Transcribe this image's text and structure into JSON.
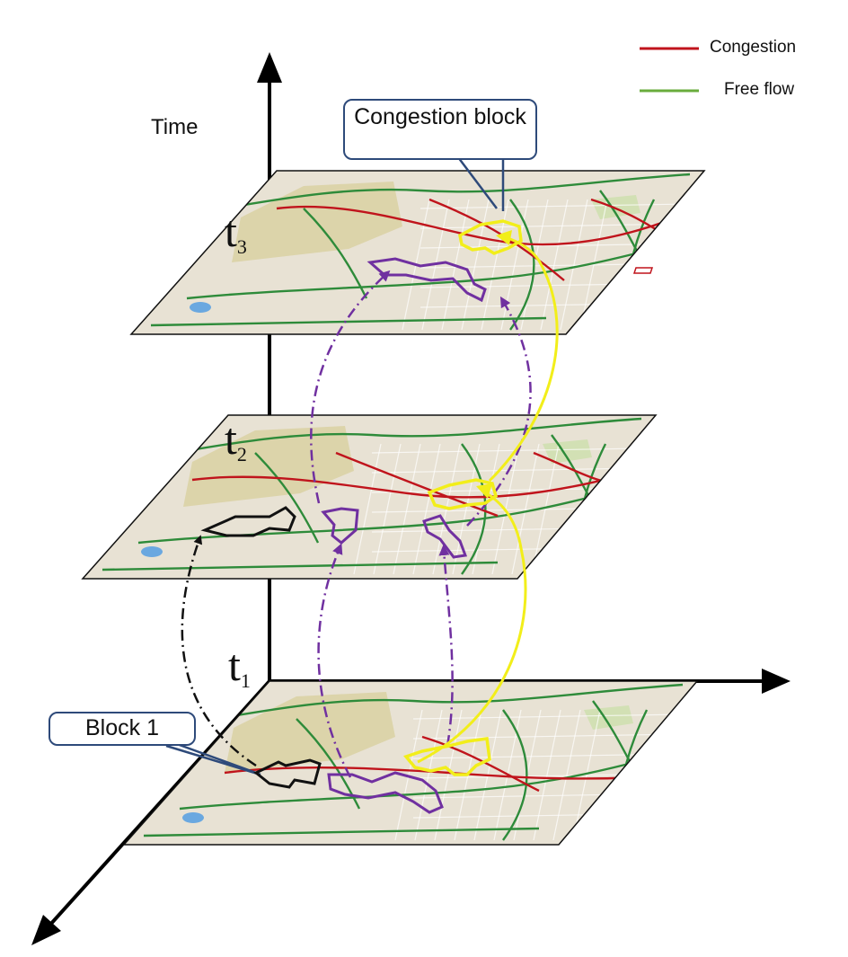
{
  "axis": {
    "time_label": "Time"
  },
  "layers": [
    {
      "id": "t1",
      "base": "t",
      "sub": "1"
    },
    {
      "id": "t2",
      "base": "t",
      "sub": "2"
    },
    {
      "id": "t3",
      "base": "t",
      "sub": "3"
    }
  ],
  "legend": [
    {
      "label": "Congestion",
      "color": "#c0141c"
    },
    {
      "label": "Free flow",
      "color": "#6aac3c"
    }
  ],
  "callouts": {
    "congestion_block": "Congestion block",
    "block1": "Block 1"
  },
  "colors": {
    "map_bg": "#e8e2d4",
    "campus": "#d8cf9c",
    "congestion": "#c0141c",
    "free_flow": "#2e8b3a",
    "purple_block": "#7030a0",
    "yellow_block": "#f2ee1a",
    "black_block": "#111111",
    "callout_border": "#2e4a7a"
  }
}
